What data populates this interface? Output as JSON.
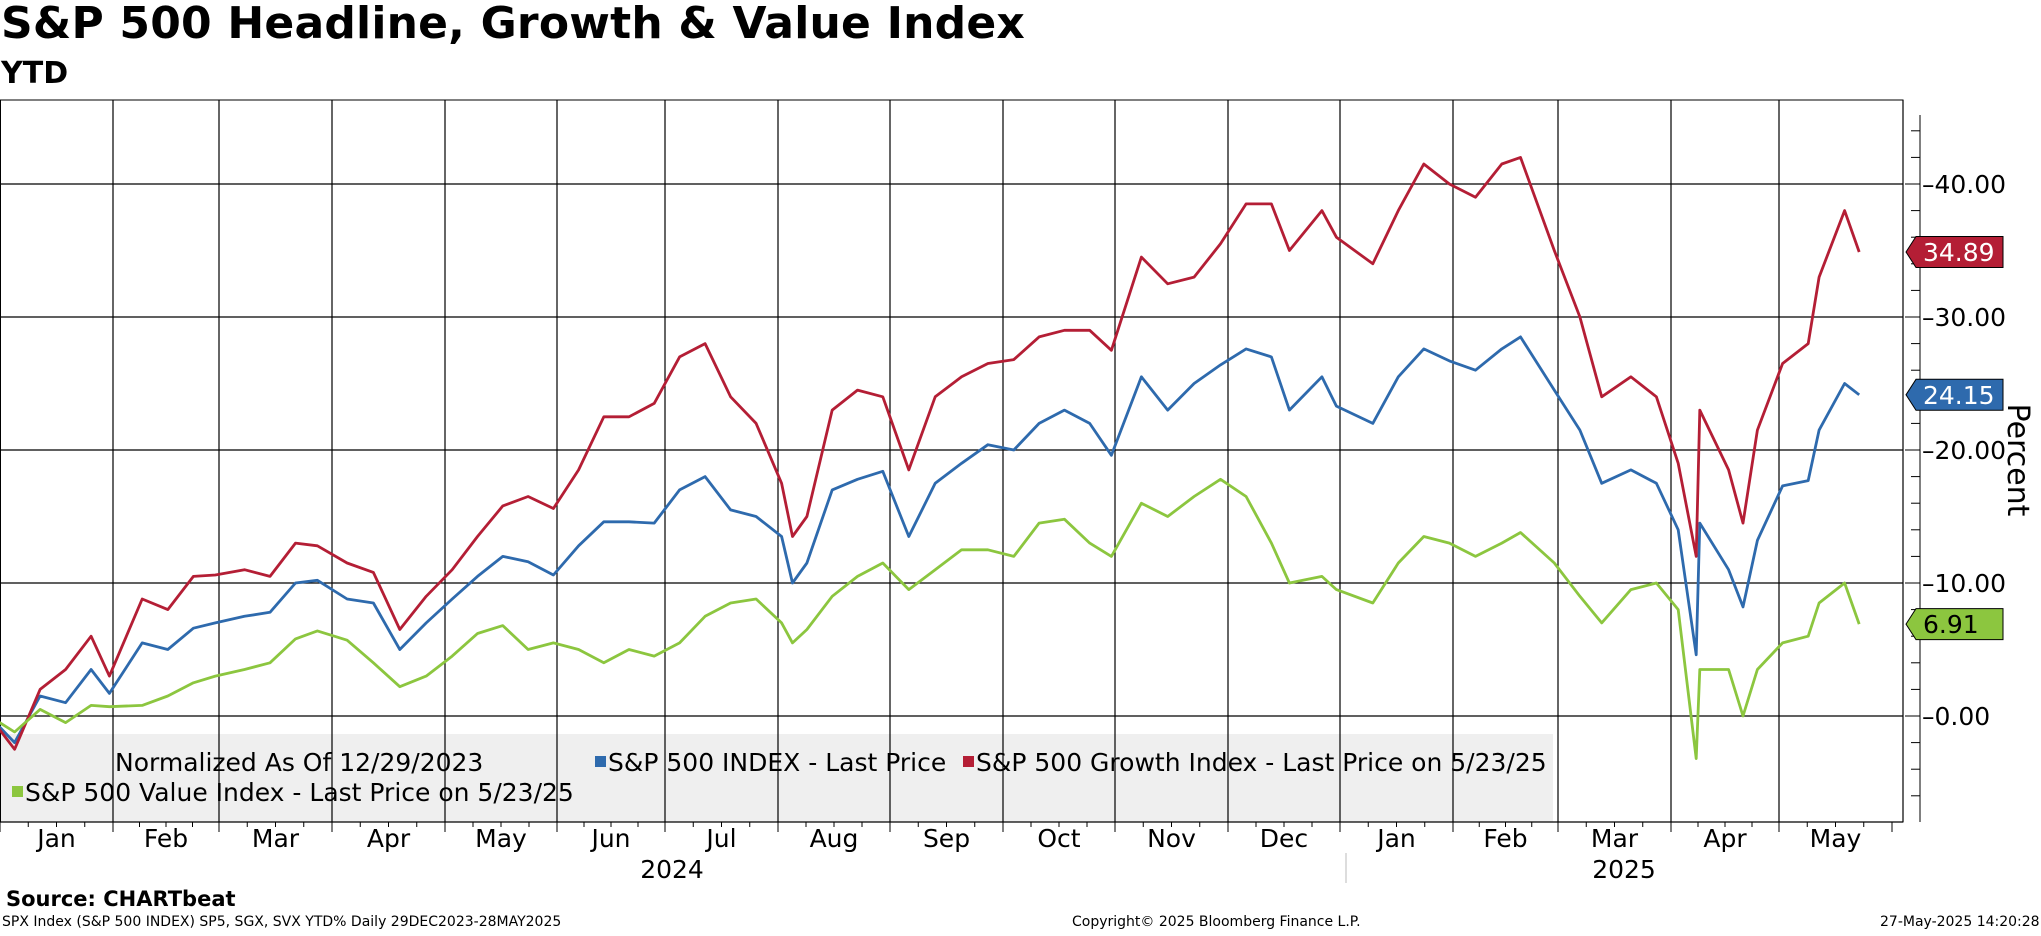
{
  "chart_data": {
    "type": "line",
    "title": "S&P 500 Headline, Growth & Value Index",
    "subtitle": "YTD",
    "ylabel": "Percent",
    "ylim": [
      -8,
      46
    ],
    "y_ticks": [
      "0.00",
      "10.00",
      "20.00",
      "30.00",
      "40.00"
    ],
    "y_tick_values": [
      0,
      10,
      20,
      30,
      40
    ],
    "x_months": [
      "Jan",
      "Feb",
      "Mar",
      "Apr",
      "May",
      "Jun",
      "Jul",
      "Aug",
      "Sep",
      "Oct",
      "Nov",
      "Dec",
      "Jan",
      "Feb",
      "Mar",
      "Apr",
      "May"
    ],
    "x_years": [
      "2024",
      "2025"
    ],
    "month_starts": [
      "2024-01-01",
      "2024-02-01",
      "2024-03-01",
      "2024-04-01",
      "2024-05-01",
      "2024-06-01",
      "2024-07-01",
      "2024-08-01",
      "2024-09-01",
      "2024-10-01",
      "2024-11-01",
      "2024-12-01",
      "2025-01-01",
      "2025-02-01",
      "2025-03-01",
      "2025-04-01",
      "2025-05-01",
      "2025-06-01"
    ],
    "grid": true,
    "legend_note": "Normalized As Of 12/29/2023",
    "series": [
      {
        "name": "S&P 500 INDEX - Last Price",
        "color": "#2e6aad",
        "last_value_label": "24.15",
        "points": [
          [
            "2023-12-29",
            0.0
          ],
          [
            "2024-01-05",
            -2.0
          ],
          [
            "2024-01-12",
            1.5
          ],
          [
            "2024-01-19",
            1.0
          ],
          [
            "2024-01-26",
            3.5
          ],
          [
            "2024-01-31",
            1.7
          ],
          [
            "2024-02-09",
            5.5
          ],
          [
            "2024-02-16",
            5.0
          ],
          [
            "2024-02-23",
            6.6
          ],
          [
            "2024-02-29",
            7.0
          ],
          [
            "2024-03-08",
            7.5
          ],
          [
            "2024-03-15",
            7.8
          ],
          [
            "2024-03-22",
            10.0
          ],
          [
            "2024-03-28",
            10.2
          ],
          [
            "2024-04-05",
            8.8
          ],
          [
            "2024-04-12",
            8.5
          ],
          [
            "2024-04-19",
            5.0
          ],
          [
            "2024-04-26",
            7.0
          ],
          [
            "2024-05-03",
            8.8
          ],
          [
            "2024-05-10",
            10.5
          ],
          [
            "2024-05-17",
            12.0
          ],
          [
            "2024-05-24",
            11.6
          ],
          [
            "2024-05-31",
            10.6
          ],
          [
            "2024-06-07",
            12.8
          ],
          [
            "2024-06-14",
            14.6
          ],
          [
            "2024-06-21",
            14.6
          ],
          [
            "2024-06-28",
            14.5
          ],
          [
            "2024-07-05",
            17.0
          ],
          [
            "2024-07-12",
            18.0
          ],
          [
            "2024-07-19",
            15.5
          ],
          [
            "2024-07-26",
            15.0
          ],
          [
            "2024-08-02",
            13.5
          ],
          [
            "2024-08-05",
            10.0
          ],
          [
            "2024-08-09",
            11.5
          ],
          [
            "2024-08-16",
            17.0
          ],
          [
            "2024-08-23",
            17.8
          ],
          [
            "2024-08-30",
            18.4
          ],
          [
            "2024-09-06",
            13.5
          ],
          [
            "2024-09-13",
            17.5
          ],
          [
            "2024-09-20",
            19.0
          ],
          [
            "2024-09-27",
            20.4
          ],
          [
            "2024-10-04",
            20.0
          ],
          [
            "2024-10-11",
            22.0
          ],
          [
            "2024-10-18",
            23.0
          ],
          [
            "2024-10-25",
            22.0
          ],
          [
            "2024-10-31",
            19.6
          ],
          [
            "2024-11-08",
            25.5
          ],
          [
            "2024-11-15",
            23.0
          ],
          [
            "2024-11-22",
            25.0
          ],
          [
            "2024-11-29",
            26.4
          ],
          [
            "2024-12-06",
            27.6
          ],
          [
            "2024-12-13",
            27.0
          ],
          [
            "2024-12-18",
            23.0
          ],
          [
            "2024-12-27",
            25.5
          ],
          [
            "2024-12-31",
            23.3
          ],
          [
            "2025-01-10",
            22.0
          ],
          [
            "2025-01-17",
            25.5
          ],
          [
            "2025-01-24",
            27.6
          ],
          [
            "2025-01-31",
            26.7
          ],
          [
            "2025-02-07",
            26.0
          ],
          [
            "2025-02-14",
            27.6
          ],
          [
            "2025-02-19",
            28.5
          ],
          [
            "2025-02-28",
            24.5
          ],
          [
            "2025-03-07",
            21.5
          ],
          [
            "2025-03-13",
            17.5
          ],
          [
            "2025-03-21",
            18.5
          ],
          [
            "2025-03-28",
            17.5
          ],
          [
            "2025-04-03",
            14.0
          ],
          [
            "2025-04-08",
            4.6
          ],
          [
            "2025-04-09",
            14.5
          ],
          [
            "2025-04-17",
            11.0
          ],
          [
            "2025-04-21",
            8.2
          ],
          [
            "2025-04-25",
            13.2
          ],
          [
            "2025-05-02",
            17.3
          ],
          [
            "2025-05-09",
            17.7
          ],
          [
            "2025-05-12",
            21.5
          ],
          [
            "2025-05-19",
            25.0
          ],
          [
            "2025-05-23",
            24.15
          ]
        ]
      },
      {
        "name": "S&P 500 Growth Index - Last Price on 5/23/25",
        "color": "#b41e35",
        "last_value_label": "34.89",
        "points": [
          [
            "2023-12-29",
            0.0
          ],
          [
            "2024-01-05",
            -2.5
          ],
          [
            "2024-01-12",
            2.0
          ],
          [
            "2024-01-19",
            3.5
          ],
          [
            "2024-01-26",
            6.0
          ],
          [
            "2024-01-31",
            3.0
          ],
          [
            "2024-02-09",
            8.8
          ],
          [
            "2024-02-16",
            8.0
          ],
          [
            "2024-02-23",
            10.5
          ],
          [
            "2024-02-29",
            10.6
          ],
          [
            "2024-03-08",
            11.0
          ],
          [
            "2024-03-15",
            10.5
          ],
          [
            "2024-03-22",
            13.0
          ],
          [
            "2024-03-28",
            12.8
          ],
          [
            "2024-04-05",
            11.5
          ],
          [
            "2024-04-12",
            10.8
          ],
          [
            "2024-04-19",
            6.5
          ],
          [
            "2024-04-26",
            9.0
          ],
          [
            "2024-05-03",
            11.0
          ],
          [
            "2024-05-10",
            13.5
          ],
          [
            "2024-05-17",
            15.8
          ],
          [
            "2024-05-24",
            16.5
          ],
          [
            "2024-05-31",
            15.6
          ],
          [
            "2024-06-07",
            18.5
          ],
          [
            "2024-06-14",
            22.5
          ],
          [
            "2024-06-21",
            22.5
          ],
          [
            "2024-06-28",
            23.5
          ],
          [
            "2024-07-05",
            27.0
          ],
          [
            "2024-07-12",
            28.0
          ],
          [
            "2024-07-19",
            24.0
          ],
          [
            "2024-07-26",
            22.0
          ],
          [
            "2024-08-02",
            17.5
          ],
          [
            "2024-08-05",
            13.5
          ],
          [
            "2024-08-09",
            15.0
          ],
          [
            "2024-08-16",
            23.0
          ],
          [
            "2024-08-23",
            24.5
          ],
          [
            "2024-08-30",
            24.0
          ],
          [
            "2024-09-06",
            18.5
          ],
          [
            "2024-09-13",
            24.0
          ],
          [
            "2024-09-20",
            25.5
          ],
          [
            "2024-09-27",
            26.5
          ],
          [
            "2024-10-04",
            26.8
          ],
          [
            "2024-10-11",
            28.5
          ],
          [
            "2024-10-18",
            29.0
          ],
          [
            "2024-10-25",
            29.0
          ],
          [
            "2024-10-31",
            27.5
          ],
          [
            "2024-11-08",
            34.5
          ],
          [
            "2024-11-15",
            32.5
          ],
          [
            "2024-11-22",
            33.0
          ],
          [
            "2024-11-29",
            35.5
          ],
          [
            "2024-12-06",
            38.5
          ],
          [
            "2024-12-13",
            38.5
          ],
          [
            "2024-12-18",
            35.0
          ],
          [
            "2024-12-27",
            38.0
          ],
          [
            "2024-12-31",
            36.0
          ],
          [
            "2025-01-10",
            34.0
          ],
          [
            "2025-01-17",
            38.0
          ],
          [
            "2025-01-24",
            41.5
          ],
          [
            "2025-01-31",
            40.0
          ],
          [
            "2025-02-07",
            39.0
          ],
          [
            "2025-02-14",
            41.5
          ],
          [
            "2025-02-19",
            42.0
          ],
          [
            "2025-02-28",
            35.0
          ],
          [
            "2025-03-07",
            30.0
          ],
          [
            "2025-03-13",
            24.0
          ],
          [
            "2025-03-21",
            25.5
          ],
          [
            "2025-03-28",
            24.0
          ],
          [
            "2025-04-03",
            19.0
          ],
          [
            "2025-04-08",
            12.0
          ],
          [
            "2025-04-09",
            23.0
          ],
          [
            "2025-04-17",
            18.5
          ],
          [
            "2025-04-21",
            14.5
          ],
          [
            "2025-04-25",
            21.5
          ],
          [
            "2025-05-02",
            26.5
          ],
          [
            "2025-05-09",
            28.0
          ],
          [
            "2025-05-12",
            33.0
          ],
          [
            "2025-05-19",
            38.0
          ],
          [
            "2025-05-23",
            34.89
          ]
        ]
      },
      {
        "name": "S&P 500 Value Index - Last Price on 5/23/25",
        "color": "#8cc63f",
        "last_value_label": "6.91",
        "points": [
          [
            "2023-12-29",
            0.0
          ],
          [
            "2024-01-05",
            -1.2
          ],
          [
            "2024-01-12",
            0.5
          ],
          [
            "2024-01-19",
            -0.5
          ],
          [
            "2024-01-26",
            0.8
          ],
          [
            "2024-01-31",
            0.7
          ],
          [
            "2024-02-09",
            0.8
          ],
          [
            "2024-02-16",
            1.5
          ],
          [
            "2024-02-23",
            2.5
          ],
          [
            "2024-02-29",
            3.0
          ],
          [
            "2024-03-08",
            3.5
          ],
          [
            "2024-03-15",
            4.0
          ],
          [
            "2024-03-22",
            5.8
          ],
          [
            "2024-03-28",
            6.4
          ],
          [
            "2024-04-05",
            5.7
          ],
          [
            "2024-04-12",
            4.0
          ],
          [
            "2024-04-19",
            2.2
          ],
          [
            "2024-04-26",
            3.0
          ],
          [
            "2024-05-03",
            4.5
          ],
          [
            "2024-05-10",
            6.2
          ],
          [
            "2024-05-17",
            6.8
          ],
          [
            "2024-05-24",
            5.0
          ],
          [
            "2024-05-31",
            5.5
          ],
          [
            "2024-06-07",
            5.0
          ],
          [
            "2024-06-14",
            4.0
          ],
          [
            "2024-06-21",
            5.0
          ],
          [
            "2024-06-28",
            4.5
          ],
          [
            "2024-07-05",
            5.5
          ],
          [
            "2024-07-12",
            7.5
          ],
          [
            "2024-07-19",
            8.5
          ],
          [
            "2024-07-26",
            8.8
          ],
          [
            "2024-08-02",
            7.0
          ],
          [
            "2024-08-05",
            5.5
          ],
          [
            "2024-08-09",
            6.5
          ],
          [
            "2024-08-16",
            9.0
          ],
          [
            "2024-08-23",
            10.5
          ],
          [
            "2024-08-30",
            11.5
          ],
          [
            "2024-09-06",
            9.5
          ],
          [
            "2024-09-13",
            11.0
          ],
          [
            "2024-09-20",
            12.5
          ],
          [
            "2024-09-27",
            12.5
          ],
          [
            "2024-10-04",
            12.0
          ],
          [
            "2024-10-11",
            14.5
          ],
          [
            "2024-10-18",
            14.8
          ],
          [
            "2024-10-25",
            13.0
          ],
          [
            "2024-10-31",
            12.0
          ],
          [
            "2024-11-08",
            16.0
          ],
          [
            "2024-11-15",
            15.0
          ],
          [
            "2024-11-22",
            16.5
          ],
          [
            "2024-11-29",
            17.8
          ],
          [
            "2024-12-06",
            16.5
          ],
          [
            "2024-12-13",
            13.0
          ],
          [
            "2024-12-18",
            10.0
          ],
          [
            "2024-12-27",
            10.5
          ],
          [
            "2024-12-31",
            9.5
          ],
          [
            "2025-01-10",
            8.5
          ],
          [
            "2025-01-17",
            11.5
          ],
          [
            "2025-01-24",
            13.5
          ],
          [
            "2025-01-31",
            13.0
          ],
          [
            "2025-02-07",
            12.0
          ],
          [
            "2025-02-14",
            13.0
          ],
          [
            "2025-02-19",
            13.8
          ],
          [
            "2025-02-28",
            11.5
          ],
          [
            "2025-03-07",
            9.0
          ],
          [
            "2025-03-13",
            7.0
          ],
          [
            "2025-03-21",
            9.5
          ],
          [
            "2025-03-28",
            10.0
          ],
          [
            "2025-04-03",
            8.0
          ],
          [
            "2025-04-08",
            -3.2
          ],
          [
            "2025-04-09",
            3.5
          ],
          [
            "2025-04-17",
            3.5
          ],
          [
            "2025-04-21",
            0.0
          ],
          [
            "2025-04-25",
            3.5
          ],
          [
            "2025-05-02",
            5.5
          ],
          [
            "2025-05-09",
            6.0
          ],
          [
            "2025-05-12",
            8.5
          ],
          [
            "2025-05-19",
            10.0
          ],
          [
            "2025-05-23",
            6.91
          ]
        ]
      }
    ]
  },
  "source": "Source: CHARTbeat",
  "footer": {
    "left": "SPX Index (S&P 500 INDEX) SP5, SGX, SVX YTD%  Daily 29DEC2023-28MAY2025",
    "center": "Copyright© 2025 Bloomberg Finance L.P.",
    "right": "27-May-2025 14:20:28"
  }
}
